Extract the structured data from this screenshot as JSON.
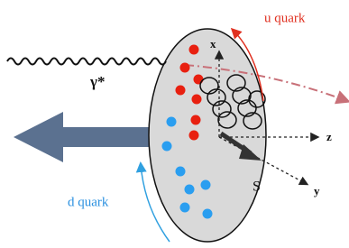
{
  "labels": {
    "u_quark": "u quark",
    "photon": "γ*",
    "x_axis": "x",
    "z_axis": "z",
    "y_axis": "y",
    "spin": "S",
    "d_quark": "d quark"
  }
}
